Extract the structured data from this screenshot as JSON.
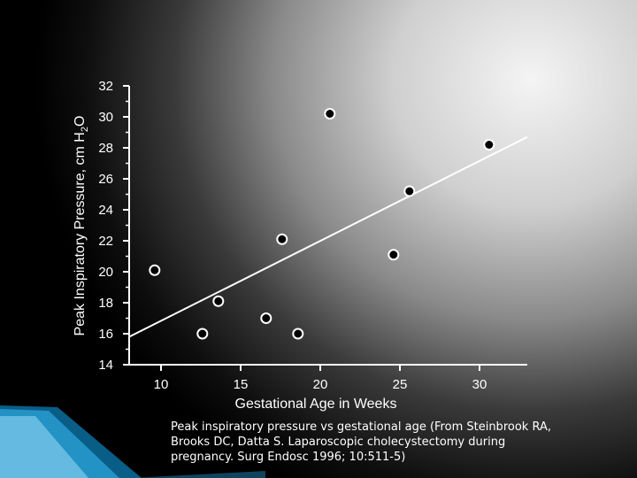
{
  "chart_data": {
    "type": "scatter",
    "xlabel": "Gestational Age in Weeks",
    "ylabel_prefix": "Peak Inspiratory Pressure, cm H",
    "ylabel_sub": "2",
    "ylabel_suffix": "O",
    "xlim": [
      8,
      33
    ],
    "ylim": [
      14,
      32
    ],
    "xticks": [
      10,
      15,
      20,
      25,
      30
    ],
    "yticks": [
      14,
      16,
      18,
      20,
      22,
      24,
      26,
      28,
      30,
      32
    ],
    "points": [
      {
        "x": 9.6,
        "y": 20.1
      },
      {
        "x": 12.6,
        "y": 16.0
      },
      {
        "x": 13.6,
        "y": 18.1
      },
      {
        "x": 16.6,
        "y": 17.0
      },
      {
        "x": 17.6,
        "y": 22.1
      },
      {
        "x": 18.6,
        "y": 16.0
      },
      {
        "x": 20.6,
        "y": 30.2
      },
      {
        "x": 24.6,
        "y": 21.1
      },
      {
        "x": 25.6,
        "y": 25.2
      },
      {
        "x": 30.6,
        "y": 28.2
      }
    ],
    "trendline": {
      "x": [
        8,
        33
      ],
      "y": [
        15.8,
        28.7
      ]
    },
    "grid": false,
    "legend": "none"
  },
  "caption": "Peak inspiratory pressure vs gestational age (From Steinbrook RA, Brooks DC, Datta S. Laparoscopic cholecystectomy during pregnancy. Surg Endosc 1996; 10:511-5)",
  "colors": {
    "point_fill": "#000000",
    "point_stroke": "#ffffff",
    "trendline": "#ffffff",
    "axis": "#ffffff",
    "corner_accent": "#2fa8df"
  }
}
